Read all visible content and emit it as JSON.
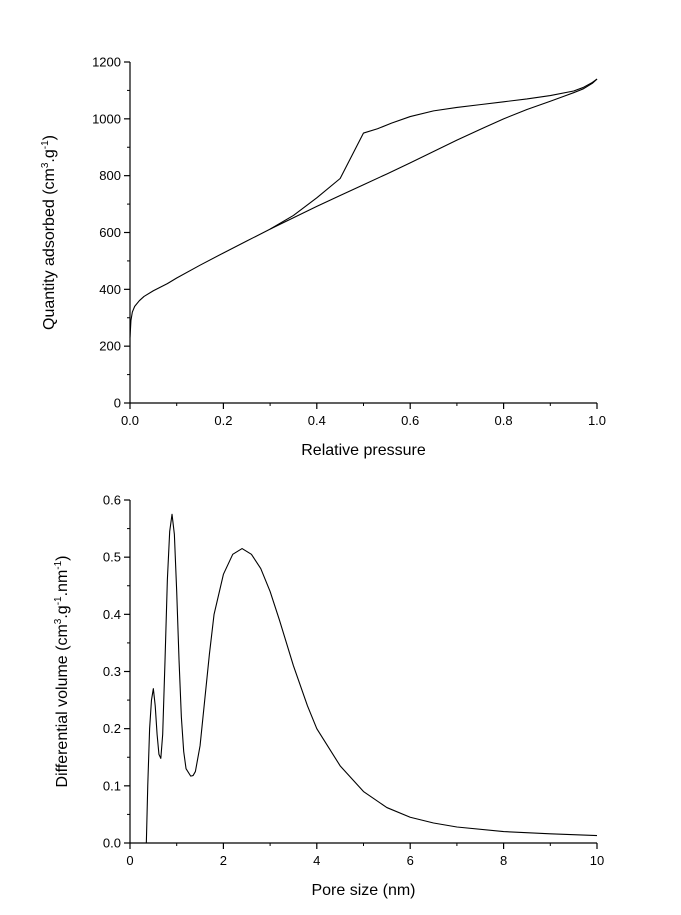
{
  "chart_data": [
    {
      "type": "line",
      "xlabel": "Relative pressure",
      "ylabel": {
        "pre": "Quantity adsorbed (cm",
        "sup1": "3",
        "mid": ".g",
        "sup2": "-1",
        "post": ")"
      },
      "xlim": [
        0.0,
        1.0
      ],
      "ylim": [
        0,
        1200
      ],
      "xticks": [
        0.0,
        0.2,
        0.4,
        0.6,
        0.8,
        1.0
      ],
      "xtick_labels": [
        "0.0",
        "0.2",
        "0.4",
        "0.6",
        "0.8",
        "1.0"
      ],
      "yticks": [
        0,
        200,
        400,
        600,
        800,
        1000,
        1200
      ],
      "ytick_labels": [
        "0",
        "200",
        "400",
        "600",
        "800",
        "1000",
        "1200"
      ],
      "grid": false,
      "series": [
        {
          "x": [
            0.0,
            0.002,
            0.005,
            0.01,
            0.02,
            0.03,
            0.05,
            0.08,
            0.1,
            0.15,
            0.2,
            0.25,
            0.3,
            0.35,
            0.4,
            0.45,
            0.5,
            0.55,
            0.6,
            0.65,
            0.7,
            0.75,
            0.8,
            0.85,
            0.9,
            0.93,
            0.95,
            0.97,
            0.99,
            1.0
          ],
          "y": [
            230,
            290,
            320,
            340,
            360,
            375,
            395,
            420,
            440,
            485,
            528,
            570,
            612,
            652,
            692,
            730,
            768,
            806,
            845,
            885,
            925,
            963,
            1000,
            1033,
            1062,
            1080,
            1092,
            1105,
            1125,
            1140
          ]
        },
        {
          "x": [
            1.0,
            0.99,
            0.97,
            0.95,
            0.9,
            0.85,
            0.8,
            0.75,
            0.7,
            0.65,
            0.6,
            0.56,
            0.53,
            0.5,
            0.45,
            0.4,
            0.35,
            0.3
          ],
          "y": [
            1140,
            1128,
            1110,
            1098,
            1082,
            1070,
            1060,
            1050,
            1040,
            1028,
            1008,
            985,
            965,
            950,
            790,
            722,
            660,
            612
          ]
        }
      ]
    },
    {
      "type": "line",
      "xlabel": "Pore size (nm)",
      "ylabel": {
        "pre": "Differential volume (cm",
        "sup1": "3",
        "mid": ".g",
        "sup2": "-1",
        "mid2": ".nm",
        "sup3": "-1",
        "post": ")"
      },
      "xlim": [
        0,
        10
      ],
      "ylim": [
        0.0,
        0.6
      ],
      "xticks": [
        0,
        2,
        4,
        6,
        8,
        10
      ],
      "xtick_labels": [
        "0",
        "2",
        "4",
        "6",
        "8",
        "10"
      ],
      "yticks": [
        0.0,
        0.1,
        0.2,
        0.3,
        0.4,
        0.5,
        0.6
      ],
      "ytick_labels": [
        "0.0",
        "0.1",
        "0.2",
        "0.3",
        "0.4",
        "0.5",
        "0.6"
      ],
      "grid": false,
      "series": [
        {
          "x": [
            0.35,
            0.38,
            0.42,
            0.46,
            0.5,
            0.54,
            0.58,
            0.62,
            0.66,
            0.7,
            0.75,
            0.8,
            0.85,
            0.9,
            0.95,
            1.0,
            1.05,
            1.1,
            1.15,
            1.2,
            1.3,
            1.35,
            1.4,
            1.5,
            1.6,
            1.7,
            1.8,
            2.0,
            2.2,
            2.4,
            2.6,
            2.8,
            3.0,
            3.2,
            3.5,
            3.8,
            4.0,
            4.5,
            5.0,
            5.5,
            6.0,
            6.5,
            7.0,
            8.0,
            9.0,
            10.0
          ],
          "y": [
            0.0,
            0.1,
            0.2,
            0.25,
            0.27,
            0.24,
            0.19,
            0.155,
            0.148,
            0.19,
            0.32,
            0.46,
            0.545,
            0.575,
            0.54,
            0.44,
            0.32,
            0.22,
            0.16,
            0.13,
            0.117,
            0.118,
            0.125,
            0.17,
            0.25,
            0.33,
            0.4,
            0.47,
            0.505,
            0.515,
            0.505,
            0.48,
            0.44,
            0.39,
            0.31,
            0.24,
            0.2,
            0.135,
            0.09,
            0.062,
            0.045,
            0.035,
            0.028,
            0.02,
            0.016,
            0.013
          ]
        }
      ]
    }
  ]
}
